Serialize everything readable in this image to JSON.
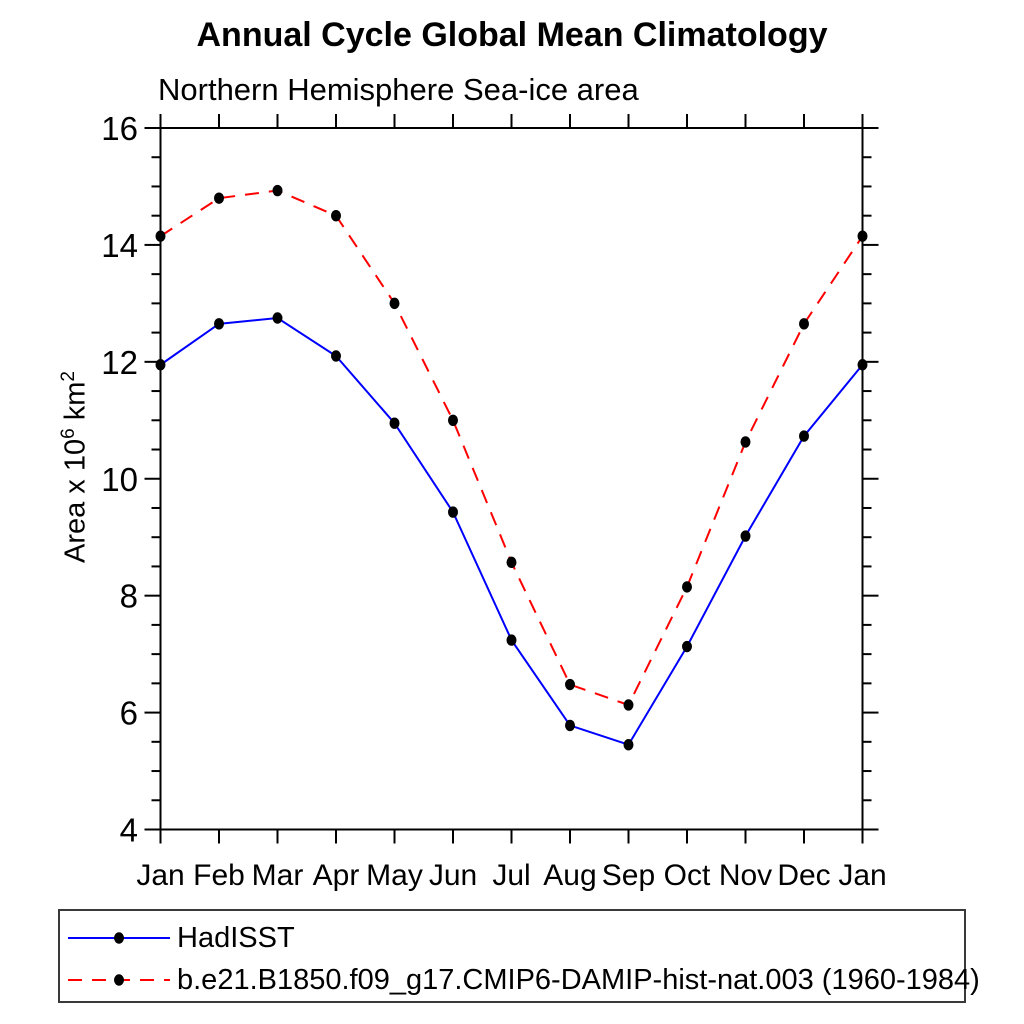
{
  "title": "Annual Cycle Global Mean Climatology",
  "subtitle": "Northern Hemisphere Sea-ice area",
  "y_axis_title": {
    "prefix": "Area x 10",
    "sup1": "6",
    "mid": " km",
    "sup2": "2"
  },
  "chart_data": {
    "type": "line",
    "categories": [
      "Jan",
      "Feb",
      "Mar",
      "Apr",
      "May",
      "Jun",
      "Jul",
      "Aug",
      "Sep",
      "Oct",
      "Nov",
      "Dec",
      "Jan"
    ],
    "series": [
      {
        "name": "HadISST",
        "color": "#0000ff",
        "line_style": "solid",
        "marker": "filled-circle",
        "marker_color": "#000000",
        "values": [
          11.95,
          12.65,
          12.75,
          12.1,
          10.95,
          9.43,
          7.24,
          5.78,
          5.45,
          7.13,
          9.02,
          10.73,
          11.95
        ]
      },
      {
        "name": "b.e21.B1850.f09_g17.CMIP6-DAMIP-hist-nat.003 (1960-1984)",
        "color": "#ff0000",
        "line_style": "dashed",
        "marker": "filled-circle",
        "marker_color": "#000000",
        "values": [
          14.15,
          14.8,
          14.93,
          14.5,
          13.0,
          11.0,
          8.57,
          6.48,
          6.13,
          8.15,
          10.63,
          12.65,
          14.15
        ]
      }
    ],
    "ylim": [
      4,
      16
    ],
    "ytick_major_interval": 2,
    "ytick_minor_interval": 0.5,
    "ytick_major_labels": [
      "4",
      "6",
      "8",
      "10",
      "12",
      "14",
      "16"
    ],
    "grid": "off",
    "legend_position": "bottom",
    "axis_color": "#000000"
  }
}
